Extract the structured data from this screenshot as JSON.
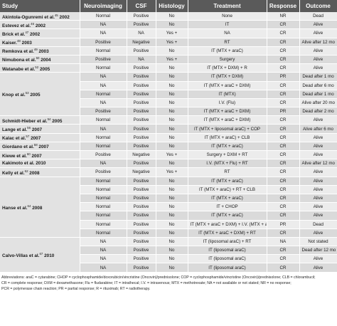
{
  "headers": [
    "Study",
    "Neuroimaging",
    "CSF",
    "Histology",
    "Treatment",
    "Response",
    "Outcome"
  ],
  "groups": [
    {
      "study": "Akintola-Ogunremi et al.",
      "ref": "45",
      "year": "2002",
      "rows": [
        [
          "Normal",
          "Positive",
          "No",
          "None",
          "NR",
          "Dead"
        ]
      ]
    },
    {
      "study": "Estevez et al.",
      "ref": "46",
      "year": "2002",
      "rows": [
        [
          "NA",
          "Positive",
          "No",
          "IT",
          "CR",
          "Alive"
        ]
      ]
    },
    {
      "study": "Brick et al.",
      "ref": "47",
      "year": "2002",
      "rows": [
        [
          "NA",
          "NA",
          "Yes +",
          "NA",
          "CR",
          "Alive"
        ]
      ]
    },
    {
      "study": "Kaiser.",
      "ref": "48",
      "year": "2003",
      "rows": [
        [
          "Positive",
          "Negative",
          "Yes +",
          "RT",
          "CR",
          "Alive after 12 mo"
        ]
      ]
    },
    {
      "study": "Remkova et al.",
      "ref": "49",
      "year": "2003",
      "rows": [
        [
          "Normal",
          "Positive",
          "No",
          "IT (MTX + araC)",
          "CR",
          "Alive"
        ]
      ]
    },
    {
      "study": "Nimubona et al.",
      "ref": "50",
      "year": "2004",
      "rows": [
        [
          "Positive",
          "NA",
          "Yes +",
          "Surgery",
          "CR",
          "Alive"
        ]
      ]
    },
    {
      "study": "Watanabe et al.",
      "ref": "52",
      "year": "2005",
      "rows": [
        [
          "Normal",
          "Positive",
          "No",
          "IT (MTX + DXM) + R",
          "CR",
          "Alive"
        ]
      ]
    },
    {
      "study": "Knop et al.",
      "ref": "53",
      "year": "2005",
      "rows": [
        [
          "NA",
          "Positive",
          "No",
          "IT (MTX + DXM)",
          "PR",
          "Dead after 1 mo"
        ],
        [
          "NA",
          "Positive",
          "No",
          "IT (MTX + araC + DXM)",
          "CR",
          "Dead after 6 mo"
        ],
        [
          "Normal",
          "Positive",
          "No",
          "IT (MTX)",
          "CR",
          "Dead after 1 mo"
        ],
        [
          "NA",
          "Positive",
          "No",
          "I.V. (Flu)",
          "CR",
          "Alive after 20 mo"
        ],
        [
          "Positive",
          "Positive",
          "No",
          "IT (MTX + araC + DXM)",
          "PR",
          "Dead after 2 mo"
        ]
      ]
    },
    {
      "study": "Schmidt-Hieber et al.",
      "ref": "54",
      "year": "2005",
      "rows": [
        [
          "Normal",
          "Positive",
          "No",
          "IT (MTX + araC + DXM)",
          "CR",
          "Alive"
        ]
      ]
    },
    {
      "study": "Lange et al.",
      "ref": "56",
      "year": "2007",
      "rows": [
        [
          "NA",
          "Positive",
          "No",
          "IT (MTX + liposomal araC) + COP",
          "CR",
          "Alive after 6 mo"
        ]
      ]
    },
    {
      "study": "Kalac et al.",
      "ref": "57",
      "year": "2007",
      "rows": [
        [
          "Normal",
          "Positive",
          "No",
          "IT (MTX + araC) + CLB",
          "CR",
          "Alive"
        ]
      ]
    },
    {
      "study": "Giordano et al.",
      "ref": "58",
      "year": "2007",
      "rows": [
        [
          "Normal",
          "Positive",
          "No",
          "IT (MTX + araC)",
          "CR",
          "Alive"
        ]
      ]
    },
    {
      "study": "Kiewe et al.",
      "ref": "60",
      "year": "2007",
      "rows": [
        [
          "Positive",
          "Negative",
          "Yes +",
          "Surgery + DXM + RT",
          "CR",
          "Alive"
        ]
      ]
    },
    {
      "study": "Kakimoto et al.",
      "ref": "",
      "year": "2010",
      "rows": [
        [
          "NA",
          "Positive",
          "No",
          "I.V. (MTX + Flu) + RT",
          "CR",
          "Alive after 12 mo"
        ]
      ]
    },
    {
      "study": "Kelly et al.",
      "ref": "62",
      "year": "2008",
      "rows": [
        [
          "Positive",
          "Negative",
          "Yes +",
          "RT",
          "CR",
          "Alive"
        ]
      ]
    },
    {
      "study": "Hanse et al.",
      "ref": "64",
      "year": "2008",
      "rows": [
        [
          "Normal",
          "Positive",
          "No",
          "IT (MTX + araC)",
          "CR",
          "Alive"
        ],
        [
          "Normal",
          "Positive",
          "No",
          "IT (MTX + araC) + RT + CLB",
          "CR",
          "Alive"
        ],
        [
          "Normal",
          "Positive",
          "No",
          "IT (MTX + araC)",
          "CR",
          "Alive"
        ],
        [
          "Normal",
          "Positive",
          "No",
          "IT + CHOP",
          "CR",
          "Alive"
        ],
        [
          "Normal",
          "Positive",
          "No",
          "IT (MTX + araC)",
          "CR",
          "Alive"
        ],
        [
          "Normal",
          "Positive",
          "No",
          "IT (MTX + araC + DXM) + I.V. (MTX + araC)",
          "PR",
          "Dead"
        ],
        [
          "Normal",
          "Positive",
          "No",
          "IT (MTX + araC + DXM) + RT",
          "CR",
          "Alive"
        ]
      ]
    },
    {
      "study": "Calvo-Villas et al.",
      "ref": "67",
      "year": "2010",
      "rows": [
        [
          "NA",
          "Positive",
          "No",
          "IT (liposomal araC) + RT",
          "NA",
          "Not stated"
        ],
        [
          "NA",
          "Positive",
          "No",
          "IT (liposomal araC)",
          "CR",
          "Dead after 12 mo"
        ],
        [
          "NA",
          "Positive",
          "No",
          "IT (liposomal araC)",
          "CR",
          "Alive"
        ],
        [
          "NA",
          "Positive",
          "No",
          "IT (liposomal araC)",
          "CR",
          "Alive"
        ]
      ]
    }
  ],
  "footnote": [
    "Abbreviations: araC = cytarabine; CHOP = cyclophosphamide/doxorubicin/vincristine (Oncovin)/prednisolone; COP = cyclophosphamide/vincristine (Oncovin)/prednisolone; CLB = chlorambucil;",
    "CR = complete response; DXM = dexamethasone; Flu = fludarabine; IT = intrathecal; I.V. = intravenous; MTX = methotrexate; NA = not available or not stated; NR = no response;",
    "PCR = polymerase chain reaction; PR = partial response; R = rituximab; RT = radiotherapy."
  ]
}
